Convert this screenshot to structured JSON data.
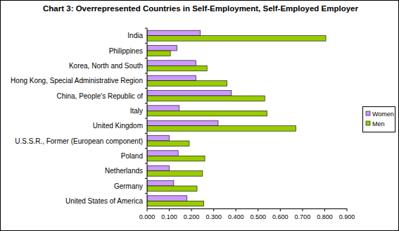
{
  "chart_data": {
    "type": "bar",
    "orientation": "horizontal",
    "title": "Chart 3: Overrepresented Countries in Self-Employment, Self-Employed Employer",
    "categories": [
      "India",
      "Philippines",
      "Korea, North and South",
      "Hong Kong, Special Administrative Region",
      "China, People's Republic of",
      "Italy",
      "United Kingdom",
      "U.S.S.R., Former (European component)",
      "Poland",
      "Netherlands",
      "Germany",
      "United States of America"
    ],
    "series": [
      {
        "name": "Women",
        "color": "#cc99ff",
        "values": [
          0.24,
          0.135,
          0.22,
          0.22,
          0.38,
          0.145,
          0.32,
          0.1,
          0.14,
          0.1,
          0.12,
          0.18
        ]
      },
      {
        "name": "Men",
        "color": "#99cc00",
        "values": [
          0.805,
          0.105,
          0.27,
          0.36,
          0.53,
          0.54,
          0.67,
          0.19,
          0.26,
          0.25,
          0.225,
          0.255
        ]
      }
    ],
    "xlim": [
      0,
      0.9
    ],
    "xticks": [
      {
        "value": 0,
        "label": "0.000"
      },
      {
        "value": 0.1,
        "label": "0.100"
      },
      {
        "value": 0.2,
        "label": "0.200"
      },
      {
        "value": 0.3,
        "label": "0.300"
      },
      {
        "value": 0.4,
        "label": "0.400"
      },
      {
        "value": 0.5,
        "label": "0.500"
      },
      {
        "value": 0.6,
        "label": "0.600"
      },
      {
        "value": 0.7,
        "label": "0.700"
      },
      {
        "value": 0.8,
        "label": "0.800"
      },
      {
        "value": 0.9,
        "label": "0.900"
      }
    ],
    "grid": false,
    "legend": "right"
  }
}
